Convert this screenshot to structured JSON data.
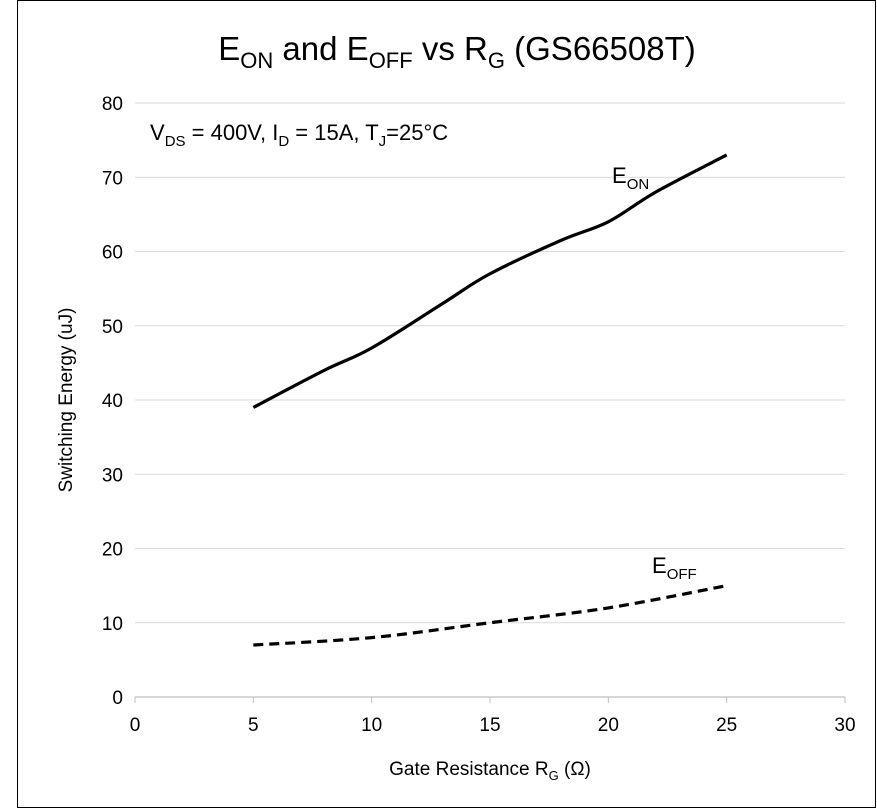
{
  "chart_data": {
    "type": "line",
    "title": "E",
    "title_parts": {
      "e1": "E",
      "s1": "ON",
      "m1": " and E",
      "s2": "OFF",
      "m2": " vs R",
      "s3": "G",
      "m3": " (GS66508T)"
    },
    "ylabel": "Switching Energy (uJ)",
    "xlabel_parts": {
      "a": "Gate Resistance R",
      "sub": "G",
      "b": " (Ω)"
    },
    "condition_parts": {
      "v": "V",
      "vsub": "DS",
      "v2": " = 400V, I",
      "isub": "D",
      "i2": " = 15A, T",
      "tsub": "J",
      "t2": "=25°C"
    },
    "xlim": [
      0,
      30
    ],
    "ylim": [
      0,
      80
    ],
    "xticks": [
      "0",
      "5",
      "10",
      "15",
      "20",
      "25",
      "30"
    ],
    "yticks": [
      "0",
      "10",
      "20",
      "30",
      "40",
      "50",
      "60",
      "70",
      "80"
    ],
    "grid": "horizontal",
    "series": [
      {
        "name": "E",
        "name_sub": "ON",
        "style": "solid",
        "color": "#000000",
        "x": [
          5,
          8,
          10,
          13,
          15,
          18,
          20,
          22,
          25
        ],
        "y": [
          39,
          44,
          47,
          53,
          57,
          61.5,
          64,
          68,
          73
        ]
      },
      {
        "name": "E",
        "name_sub": "OFF",
        "style": "dashed",
        "color": "#000000",
        "x": [
          5,
          10,
          15,
          20,
          25
        ],
        "y": [
          7,
          8,
          10,
          12,
          15
        ]
      }
    ]
  }
}
